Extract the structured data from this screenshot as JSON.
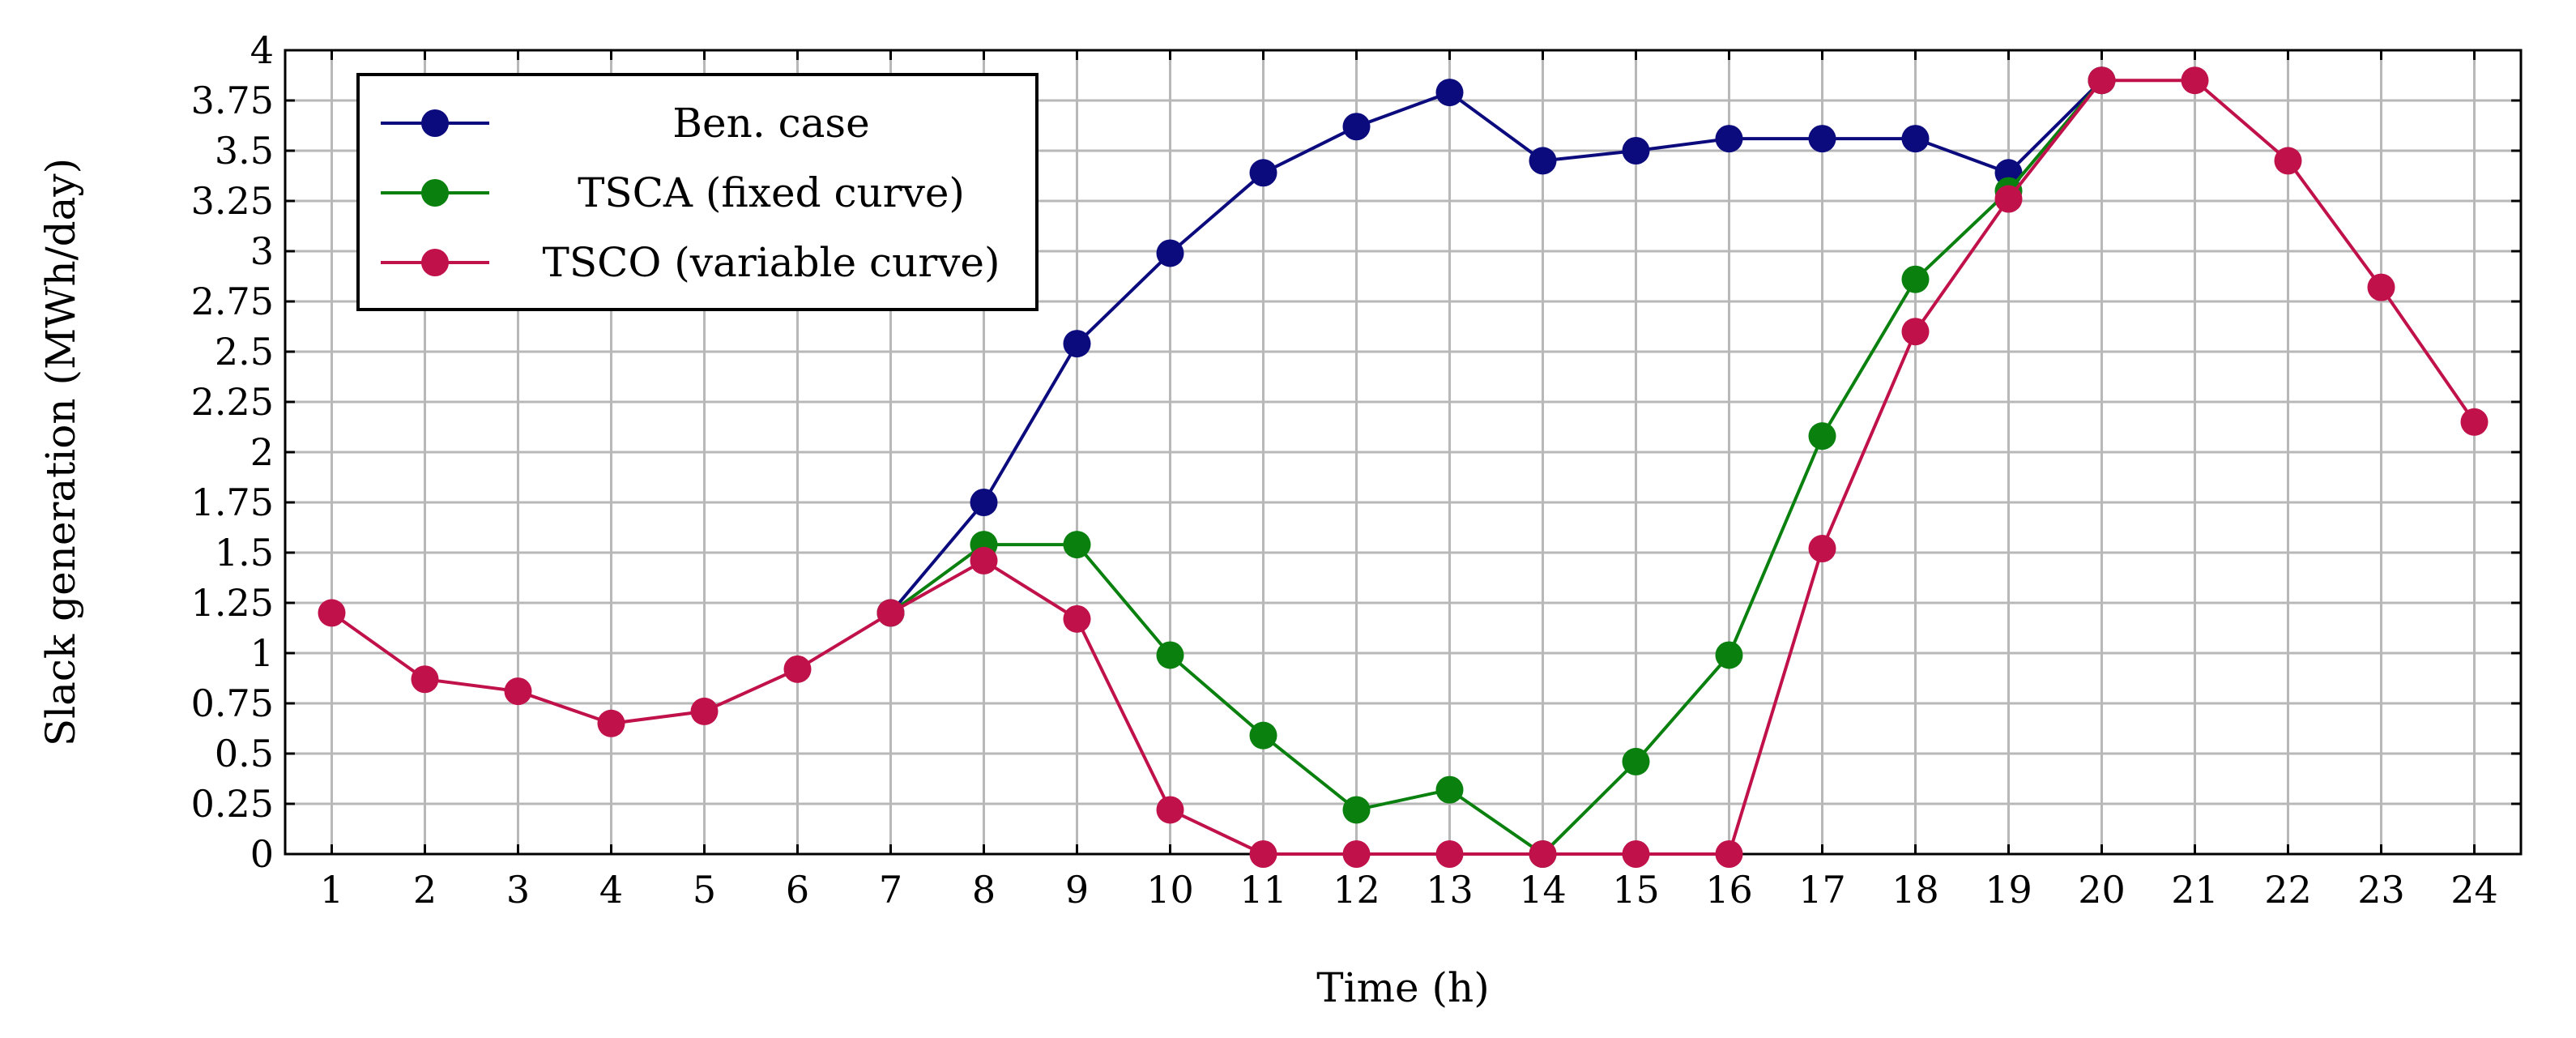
{
  "chart_data": {
    "type": "line",
    "title": "",
    "xlabel": "Time (h)",
    "ylabel": "Slack generation (MWh/day)",
    "x": [
      1,
      2,
      3,
      4,
      5,
      6,
      7,
      8,
      9,
      10,
      11,
      12,
      13,
      14,
      15,
      16,
      17,
      18,
      19,
      20,
      21,
      22,
      23,
      24
    ],
    "xlim": [
      0.5,
      24.5
    ],
    "ylim": [
      0,
      4
    ],
    "yticks": [
      0,
      0.25,
      0.5,
      0.75,
      1,
      1.25,
      1.5,
      1.75,
      2,
      2.25,
      2.5,
      2.75,
      3,
      3.25,
      3.5,
      3.75,
      4
    ],
    "ytick_labels": [
      "0",
      "0.25",
      "0.5",
      "0.75",
      "1",
      "1.25",
      "1.5",
      "1.75",
      "2",
      "2.25",
      "2.5",
      "2.75",
      "3",
      "3.25",
      "3.5",
      "3.75",
      "4"
    ],
    "xtick_labels": [
      "1",
      "2",
      "3",
      "4",
      "5",
      "6",
      "7",
      "8",
      "9",
      "10",
      "11",
      "12",
      "13",
      "14",
      "15",
      "16",
      "17",
      "18",
      "19",
      "20",
      "21",
      "22",
      "23",
      "24"
    ],
    "grid": true,
    "legend_position": "top-left",
    "series": [
      {
        "name": "Ben. case",
        "color": "#0b0b7e",
        "x": [
          7,
          8,
          9,
          10,
          11,
          12,
          13,
          14,
          15,
          16,
          17,
          18,
          19,
          20
        ],
        "values": [
          1.2,
          1.75,
          2.54,
          2.99,
          3.39,
          3.62,
          3.79,
          3.45,
          3.5,
          3.56,
          3.56,
          3.56,
          3.39,
          3.85
        ]
      },
      {
        "name": "TSCA (fixed curve)",
        "color": "#0a800f",
        "x": [
          7,
          8,
          9,
          10,
          11,
          12,
          13,
          14,
          15,
          16,
          17,
          18,
          19,
          20
        ],
        "values": [
          1.2,
          1.54,
          1.54,
          0.99,
          0.59,
          0.22,
          0.32,
          0.0,
          0.46,
          0.99,
          2.08,
          2.86,
          3.3,
          3.85
        ]
      },
      {
        "name": "TSCO (variable curve)",
        "color": "#c0114a",
        "x": [
          1,
          2,
          3,
          4,
          5,
          6,
          7,
          8,
          9,
          10,
          11,
          12,
          13,
          14,
          15,
          16,
          17,
          18,
          19,
          20,
          21,
          22,
          23,
          24
        ],
        "values": [
          1.2,
          0.87,
          0.81,
          0.65,
          0.71,
          0.92,
          1.2,
          1.46,
          1.17,
          0.22,
          0.0,
          0.0,
          0.0,
          0.0,
          0.0,
          0.0,
          1.52,
          2.6,
          3.26,
          3.85,
          3.85,
          3.45,
          2.82,
          2.15
        ]
      }
    ]
  }
}
